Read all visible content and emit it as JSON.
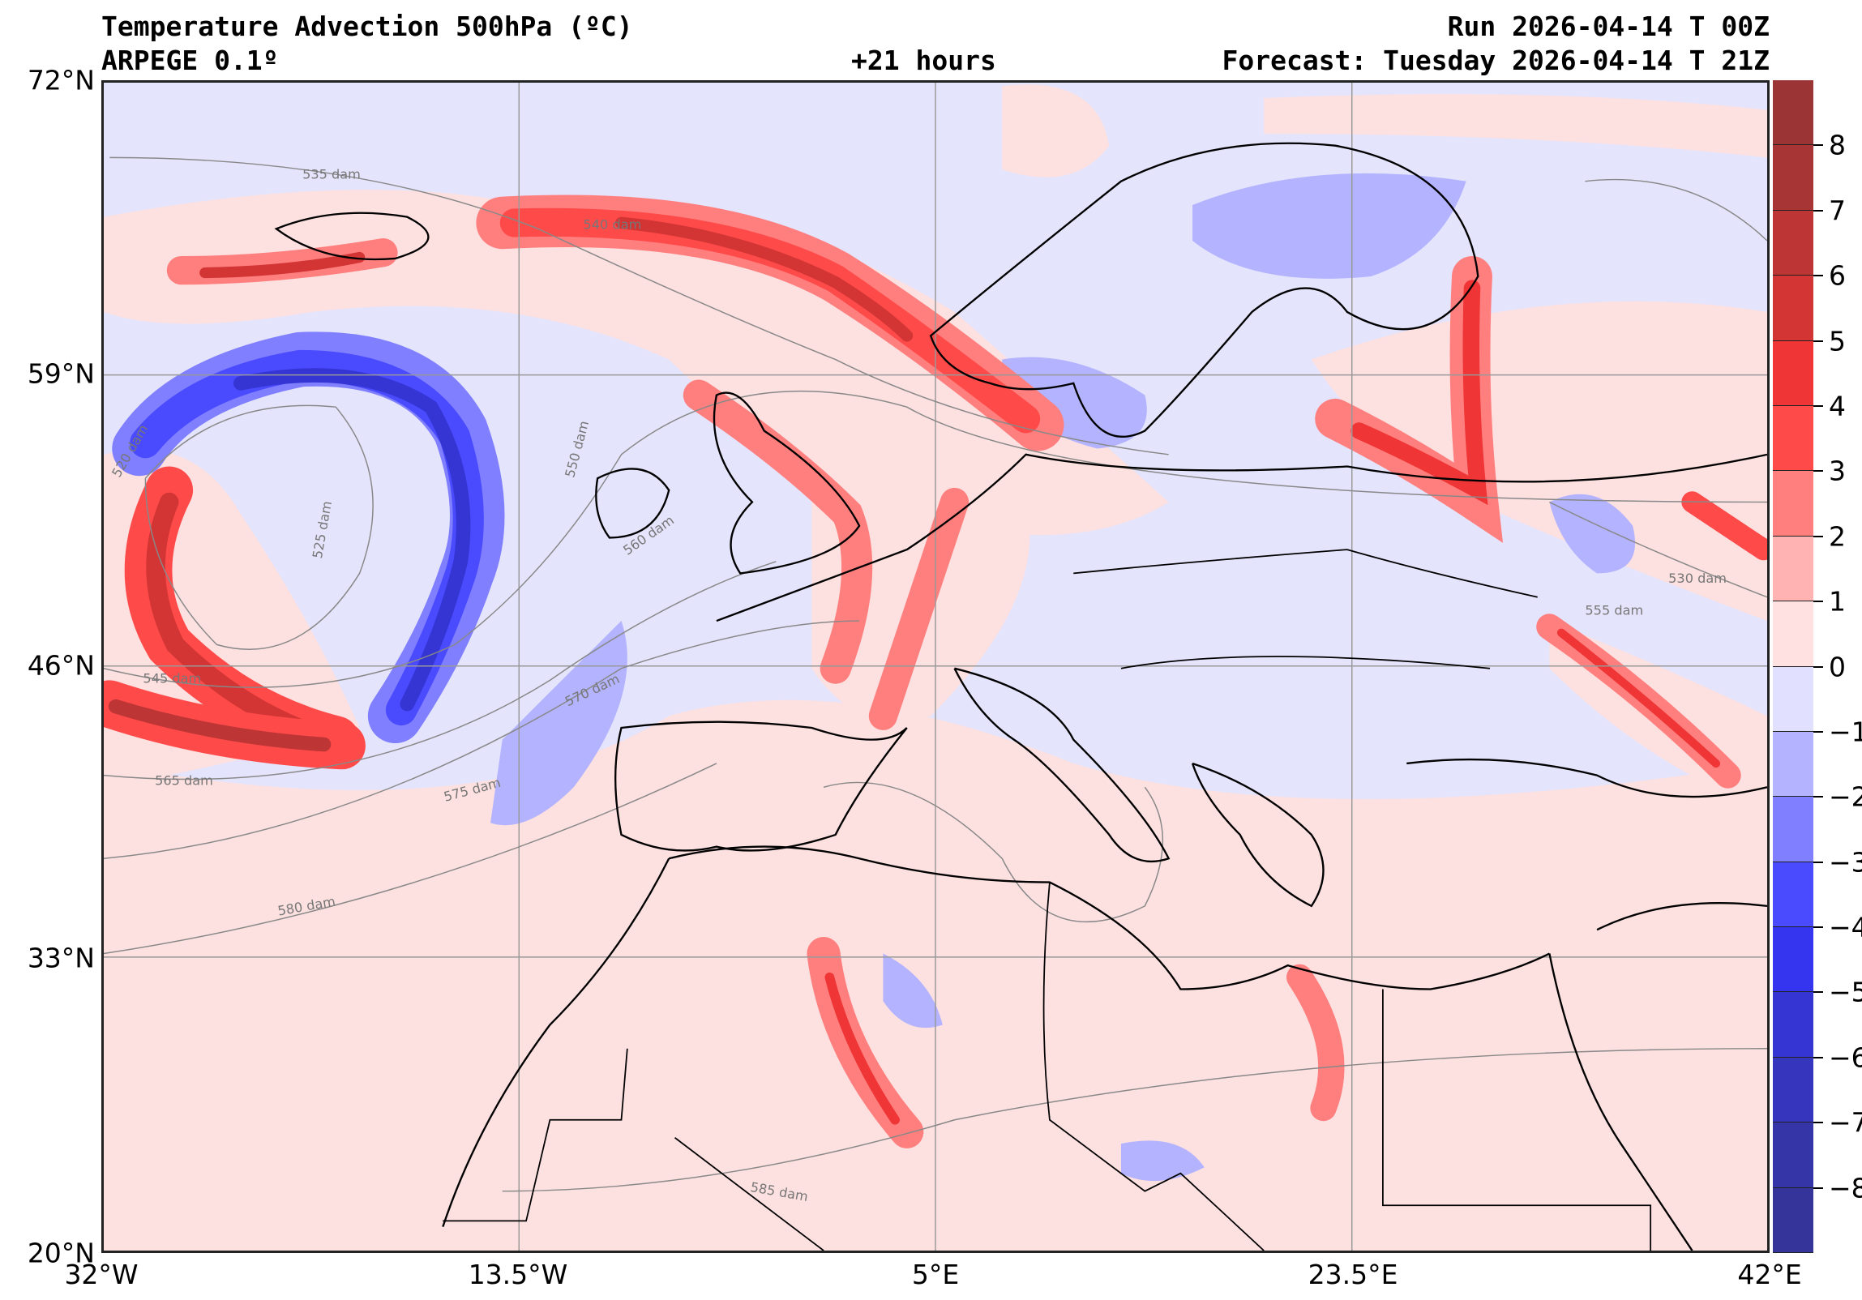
{
  "header": {
    "title": "Temperature Advection  500hPa (ºC)",
    "model": "ARPEGE 0.1º",
    "lead_time": "+21 hours",
    "run": "Run 2026-04-14 T 00Z",
    "forecast": "Forecast: Tuesday 2026-04-14 T 21Z"
  },
  "axes": {
    "lat_labels": [
      "72°N",
      "59°N",
      "46°N",
      "33°N",
      "20°N"
    ],
    "lon_labels": [
      "32°W",
      "13.5°W",
      "5°E",
      "23.5°E",
      "42°E"
    ]
  },
  "contour_labels": [
    "535 dam",
    "540 dam",
    "520 dam",
    "525 dam",
    "530 dam",
    "545 dam",
    "550 dam",
    "555 dam",
    "560 dam",
    "565 dam",
    "570 dam",
    "575 dam",
    "580 dam",
    "585 dam"
  ],
  "colorbar": {
    "unit": "ºC",
    "tick_labels": [
      "8",
      "7",
      "6",
      "5",
      "4",
      "3",
      "2",
      "1",
      "0",
      "−1",
      "−2",
      "−3",
      "−4",
      "−5",
      "−6",
      "−7",
      "−8"
    ],
    "colors": [
      "#9b3434",
      "#a83535",
      "#bd3535",
      "#d33535",
      "#ef3535",
      "#ff4a4a",
      "#ff7f7f",
      "#ffb3b3",
      "#ffe1e1",
      "#e1e1ff",
      "#b3b3ff",
      "#7f7fff",
      "#4a4aff",
      "#3535ef",
      "#3535d3",
      "#3535bd",
      "#3535a8",
      "#34349b"
    ]
  }
}
